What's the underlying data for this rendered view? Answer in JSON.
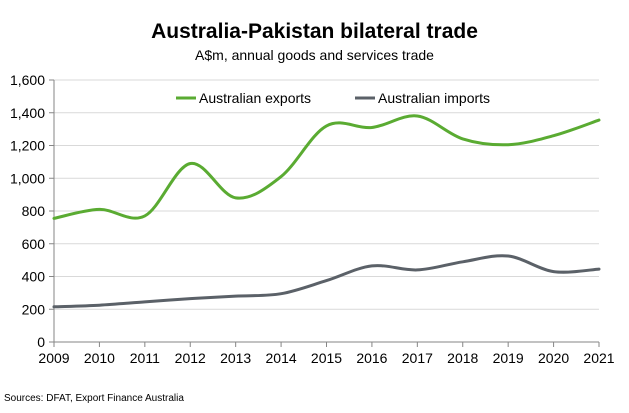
{
  "chart_data": {
    "type": "line",
    "title": "Australia-Pakistan bilateral trade",
    "subtitle": "A$m, annual goods and services trade",
    "x": [
      "2009",
      "2010",
      "2011",
      "2012",
      "2013",
      "2014",
      "2015",
      "2016",
      "2017",
      "2018",
      "2019",
      "2020",
      "2021"
    ],
    "ylim": [
      0,
      1600
    ],
    "yticks": [
      0,
      200,
      400,
      600,
      800,
      1000,
      1200,
      1400,
      1600
    ],
    "grid": "horizontal",
    "legend_position": "top",
    "series": [
      {
        "name": "Australian exports",
        "color": "#5aab32",
        "values": [
          755,
          810,
          770,
          1090,
          880,
          1010,
          1320,
          1310,
          1380,
          1240,
          1205,
          1260,
          1355
        ]
      },
      {
        "name": "Australian imports",
        "color": "#5b6168",
        "values": [
          215,
          225,
          245,
          265,
          280,
          295,
          375,
          465,
          440,
          490,
          525,
          430,
          445
        ]
      }
    ],
    "source": "Sources: DFAT, Export Finance Australia"
  }
}
